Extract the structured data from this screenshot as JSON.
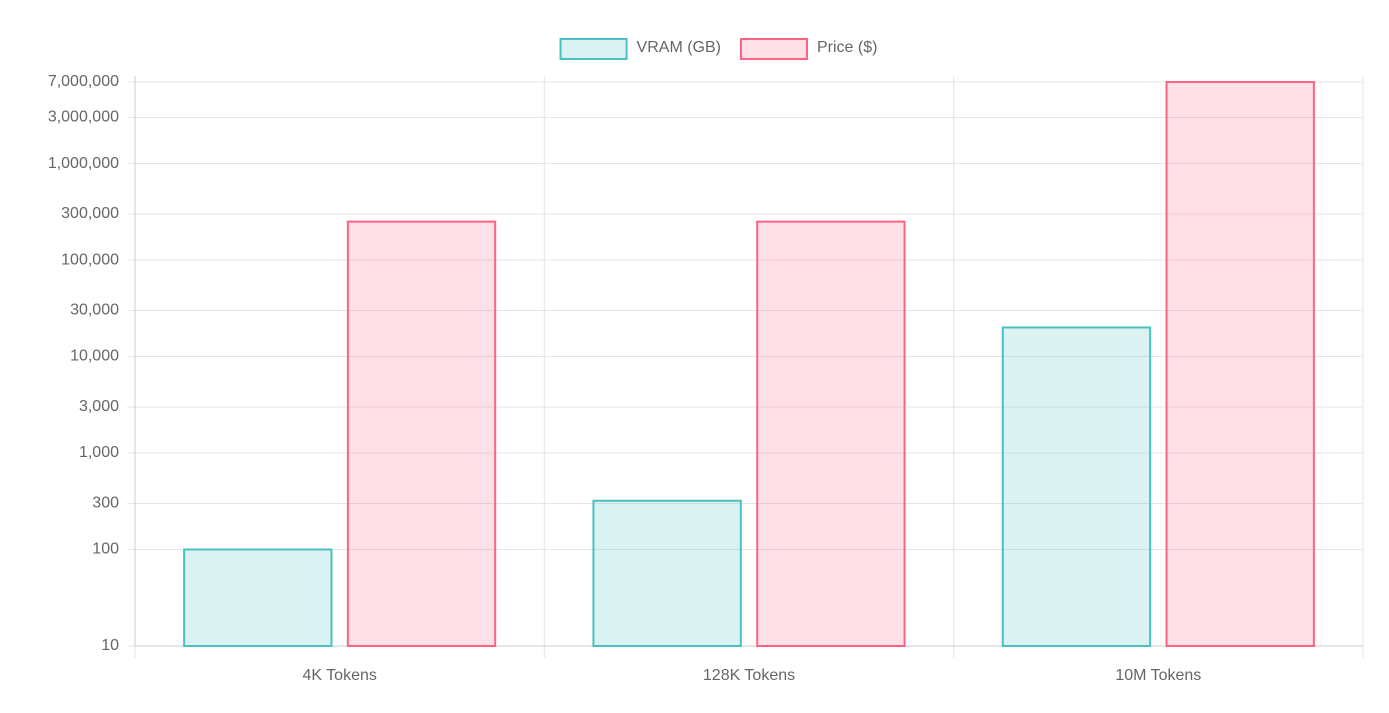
{
  "chart_data": {
    "type": "bar",
    "categories": [
      "4K Tokens",
      "128K Tokens",
      "10M Tokens"
    ],
    "series": [
      {
        "name": "VRAM (GB)",
        "color": "rgb(75, 192, 192)",
        "fill": "rgba(75, 192, 192, 0.2)",
        "values": [
          100,
          320,
          20000
        ]
      },
      {
        "name": "Price ($)",
        "color": "rgb(255, 99, 132)",
        "fill": "rgba(255, 99, 132, 0.2)",
        "values": [
          250000,
          250000,
          7000000
        ]
      }
    ],
    "log_scale": true,
    "ylim": [
      10,
      7000000
    ],
    "yticks": [
      10,
      100,
      300,
      {
        "value": 1000,
        "label": "1,000"
      },
      {
        "value": 3000,
        "label": "3,000"
      },
      {
        "value": 10000,
        "label": "10,000"
      },
      {
        "value": 30000,
        "label": "30,000"
      },
      {
        "value": 100000,
        "label": "100,000"
      },
      {
        "value": 300000,
        "label": "300,000"
      },
      {
        "value": 1000000,
        "label": "1,000,000"
      },
      {
        "value": 3000000,
        "label": "3,000,000"
      },
      {
        "value": 7000000,
        "label": "7,000,000"
      }
    ],
    "grid": true,
    "legend": "top"
  }
}
